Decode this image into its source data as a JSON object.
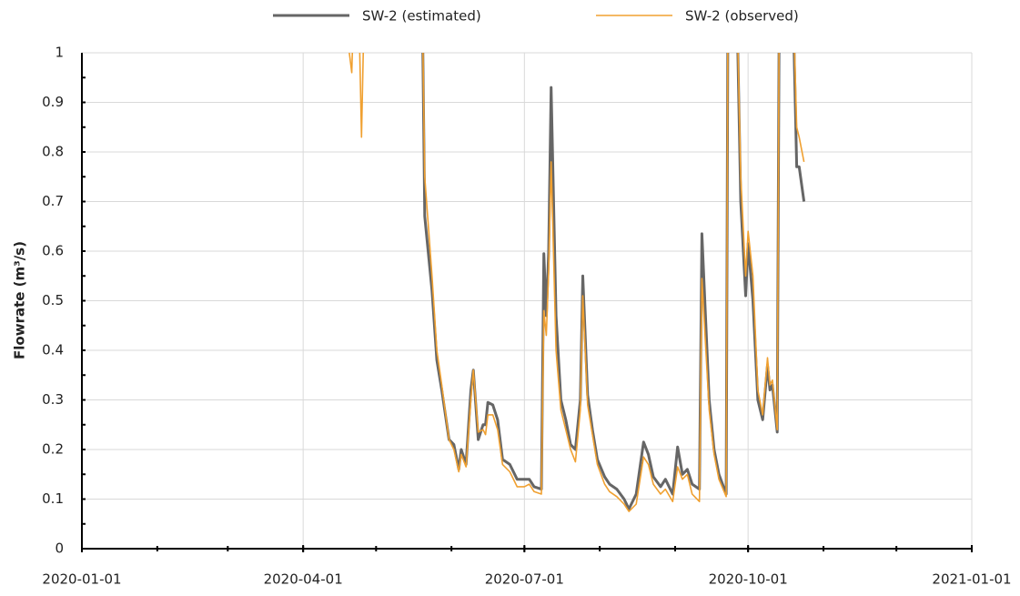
{
  "chart_data": {
    "type": "line",
    "ylabel": "Flowrate (m³/s)",
    "xlim": [
      "2020-01-01",
      "2021-01-01"
    ],
    "xticks": [
      "2020-01-01",
      "2020-04-01",
      "2020-07-01",
      "2020-10-01",
      "2021-01-01"
    ],
    "ylim": [
      0,
      1
    ],
    "yticks": [
      0,
      0.1,
      0.2,
      0.3,
      0.4,
      0.5,
      0.6,
      0.7,
      0.8,
      0.9,
      1
    ],
    "grid": true,
    "legend": "top",
    "x": [
      "2020-04-20",
      "2020-04-21",
      "2020-04-23",
      "2020-04-25",
      "2020-04-27",
      "2020-05-20",
      "2020-05-21",
      "2020-05-24",
      "2020-05-26",
      "2020-05-28",
      "2020-05-31",
      "2020-06-02",
      "2020-06-04",
      "2020-06-05",
      "2020-06-07",
      "2020-06-09",
      "2020-06-10",
      "2020-06-12",
      "2020-06-14",
      "2020-06-15",
      "2020-06-16",
      "2020-06-18",
      "2020-06-20",
      "2020-06-22",
      "2020-06-25",
      "2020-06-28",
      "2020-07-01",
      "2020-07-03",
      "2020-07-05",
      "2020-07-08",
      "2020-07-09",
      "2020-07-10",
      "2020-07-11",
      "2020-07-12",
      "2020-07-14",
      "2020-07-16",
      "2020-07-18",
      "2020-07-20",
      "2020-07-22",
      "2020-07-24",
      "2020-07-25",
      "2020-07-27",
      "2020-07-29",
      "2020-07-31",
      "2020-08-03",
      "2020-08-05",
      "2020-08-08",
      "2020-08-11",
      "2020-08-13",
      "2020-08-16",
      "2020-08-19",
      "2020-08-21",
      "2020-08-23",
      "2020-08-26",
      "2020-08-28",
      "2020-08-31",
      "2020-09-02",
      "2020-09-04",
      "2020-09-06",
      "2020-09-08",
      "2020-09-11",
      "2020-09-12",
      "2020-09-15",
      "2020-09-17",
      "2020-09-19",
      "2020-09-22",
      "2020-09-23",
      "2020-09-26",
      "2020-09-28",
      "2020-09-30",
      "2020-10-01",
      "2020-10-03",
      "2020-10-05",
      "2020-10-07",
      "2020-10-09",
      "2020-10-10",
      "2020-10-11",
      "2020-10-13",
      "2020-10-14",
      "2020-10-19",
      "2020-10-21",
      "2020-10-22",
      "2020-10-24"
    ],
    "series": [
      {
        "name": "SW-2 (estimated)",
        "color": "#666666",
        "width": 3,
        "values": [
          null,
          null,
          null,
          null,
          null,
          1.1,
          0.67,
          0.52,
          0.38,
          0.32,
          0.22,
          0.21,
          0.16,
          0.2,
          0.17,
          0.32,
          0.36,
          0.22,
          0.25,
          0.25,
          0.295,
          0.29,
          0.26,
          0.18,
          0.17,
          0.14,
          0.14,
          0.14,
          0.125,
          0.12,
          0.595,
          0.47,
          0.6,
          0.93,
          0.47,
          0.3,
          0.26,
          0.21,
          0.2,
          0.3,
          0.55,
          0.31,
          0.24,
          0.18,
          0.145,
          0.13,
          0.12,
          0.1,
          0.08,
          0.11,
          0.215,
          0.19,
          0.145,
          0.125,
          0.14,
          0.11,
          0.205,
          0.15,
          0.16,
          0.13,
          0.12,
          0.635,
          0.3,
          0.2,
          0.15,
          0.11,
          1.5,
          1.2,
          0.7,
          0.51,
          0.615,
          0.5,
          0.3,
          0.26,
          0.37,
          0.32,
          0.33,
          0.235,
          1.3,
          1.2,
          0.77,
          0.77,
          0.7
        ]
      },
      {
        "name": "SW-2 (observed)",
        "color": "#f0a030",
        "width": 1.6,
        "values": [
          1.0,
          0.96,
          1.3,
          0.83,
          1.3,
          1.1,
          0.75,
          0.55,
          0.4,
          0.33,
          0.22,
          0.2,
          0.155,
          0.19,
          0.165,
          0.3,
          0.36,
          0.235,
          0.24,
          0.23,
          0.27,
          0.27,
          0.24,
          0.17,
          0.155,
          0.125,
          0.125,
          0.13,
          0.115,
          0.11,
          0.48,
          0.43,
          0.56,
          0.78,
          0.4,
          0.28,
          0.24,
          0.2,
          0.175,
          0.28,
          0.51,
          0.29,
          0.23,
          0.17,
          0.13,
          0.115,
          0.105,
          0.09,
          0.075,
          0.09,
          0.185,
          0.17,
          0.13,
          0.11,
          0.12,
          0.095,
          0.165,
          0.14,
          0.15,
          0.11,
          0.095,
          0.545,
          0.28,
          0.19,
          0.14,
          0.105,
          1.5,
          1.2,
          0.75,
          0.55,
          0.64,
          0.55,
          0.32,
          0.27,
          0.385,
          0.33,
          0.34,
          0.24,
          1.3,
          1.2,
          0.85,
          0.83,
          0.78
        ]
      }
    ]
  }
}
